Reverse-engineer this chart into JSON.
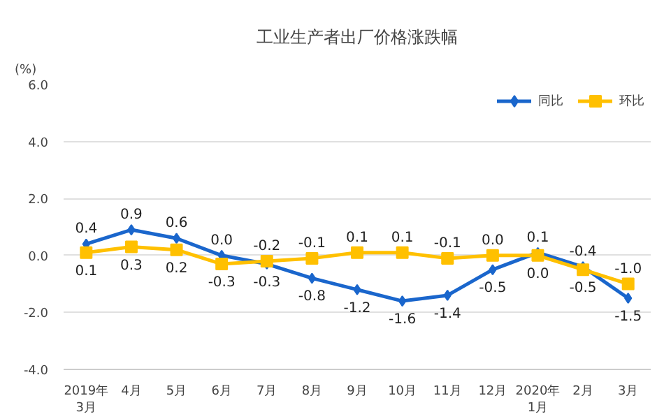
{
  "chart_data": {
    "type": "line",
    "title": "工业生产者出厂价格涨跌幅",
    "ylabel": "(%)",
    "categories": [
      "2019年\n3月",
      "4月",
      "5月",
      "6月",
      "7月",
      "8月",
      "9月",
      "10月",
      "11月",
      "12月",
      "2020年\n1月",
      "2月",
      "3月"
    ],
    "series": [
      {
        "name": "同比",
        "color": "#1a66cc",
        "marker": "diamond",
        "values": [
          0.4,
          0.9,
          0.6,
          0,
          -0.3,
          -0.8,
          -1.2,
          -1.6,
          -1.4,
          -0.5,
          0.1,
          -0.4,
          -1.5
        ],
        "value_labels": [
          "0.4",
          "0.9",
          "0.6",
          "0.0",
          "-0.3",
          "-0.8",
          "-1.2",
          "-1.6",
          "-1.4",
          "-0.5",
          "0.1",
          "-0.4",
          "-1.5"
        ]
      },
      {
        "name": "环比",
        "color": "#ffc000",
        "marker": "square",
        "values": [
          0.1,
          0.3,
          0.2,
          -0.3,
          -0.2,
          -0.1,
          0.1,
          0.1,
          -0.1,
          0,
          0,
          -0.5,
          -1
        ],
        "value_labels": [
          "0.1",
          "0.3",
          "0.2",
          "-0.3",
          "-0.2",
          "-0.1",
          "0.1",
          "0.1",
          "-0.1",
          "0.0",
          "0.0",
          "-0.5",
          "-1.0"
        ]
      }
    ],
    "ylim": [
      -4,
      6
    ],
    "yticks": [
      {
        "value": 6,
        "label": "6.0"
      },
      {
        "value": 4,
        "label": "4.0"
      },
      {
        "value": 2,
        "label": "2.0"
      },
      {
        "value": 0,
        "label": "0.0"
      },
      {
        "value": -2,
        "label": "-2.0"
      },
      {
        "value": -4,
        "label": "-4.0"
      }
    ],
    "grid": "y",
    "legend": "top right",
    "line_style": "solid"
  }
}
